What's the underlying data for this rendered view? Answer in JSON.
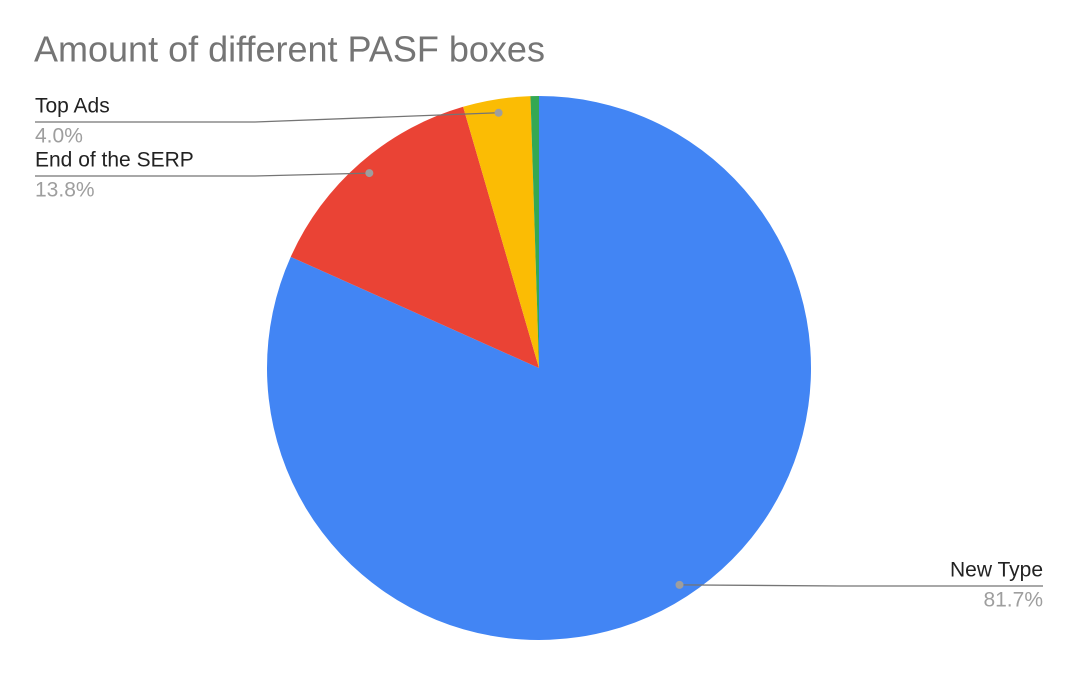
{
  "chart_data": {
    "type": "pie",
    "title": "Amount of different PASF boxes",
    "categories": [
      "New Type",
      "End of the SERP",
      "Top Ads",
      null
    ],
    "values": [
      81.7,
      13.8,
      4.0,
      0.5
    ],
    "value_labels": [
      "81.7%",
      "13.8%",
      "4.0%",
      null
    ],
    "colors": [
      "#4285f4",
      "#ea4335",
      "#fbbc04",
      "#34a853"
    ]
  }
}
